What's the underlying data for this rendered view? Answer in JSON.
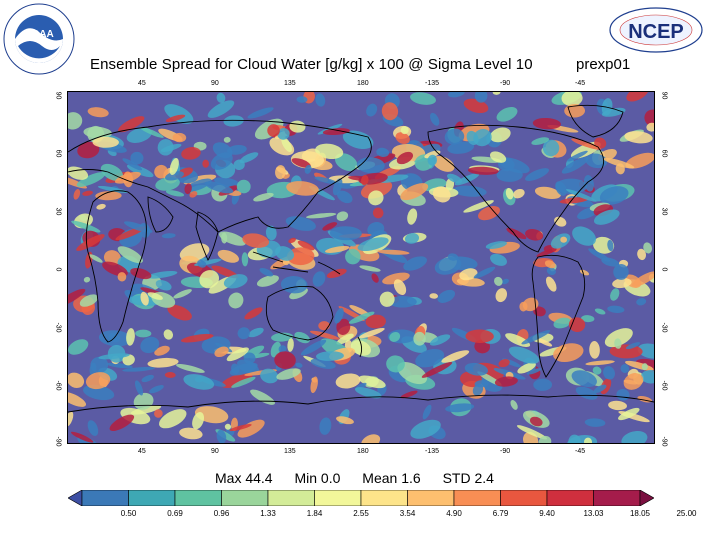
{
  "header": {
    "title": "Ensemble Spread for Cloud Water [g/kg] x 100 @ Sigma Level 10",
    "run_id": "prexp01",
    "noaa_logo_text": "NOAA",
    "noaa_ring_text": "NATIONAL OCEANIC AND ATMOSPHERIC ADMINISTRATION",
    "ncep_logo_text": "NCEP",
    "ncep_ring_text": "NATIONAL CENTERS FOR ENVIRONMENTAL PREDICTION"
  },
  "map": {
    "lon_ticks_top": [
      "45",
      "90",
      "135",
      "180",
      "-135",
      "-90",
      "-45"
    ],
    "lon_ticks_bottom": [
      "45",
      "90",
      "135",
      "180",
      "-135",
      "-90",
      "-45"
    ],
    "lat_ticks_left": [
      "90",
      "60",
      "30",
      "0",
      "-30",
      "-60",
      "-90"
    ],
    "lat_ticks_right": [
      "90",
      "60",
      "30",
      "0",
      "-30",
      "-60",
      "-90"
    ],
    "background_color": "#5b5ba4",
    "palette": [
      "#4a4aa0",
      "#3b7fc0",
      "#44a8c8",
      "#5cc3b0",
      "#a5dca6",
      "#e6f59a",
      "#fee390",
      "#fdbf6f",
      "#f89e5a",
      "#ee6545",
      "#d73a3a",
      "#b51f3f"
    ]
  },
  "stats": {
    "max": "Max 44.4",
    "min": "Min 0.0",
    "mean": "Mean 1.6",
    "std": "STD 2.4"
  },
  "colorbar": {
    "labels": [
      "0.50",
      "0.69",
      "0.96",
      "1.33",
      "1.84",
      "2.55",
      "3.54",
      "4.90",
      "6.79",
      "9.40",
      "13.03",
      "18.05",
      "25.00"
    ],
    "colors": [
      "#3d4fa3",
      "#3b79b7",
      "#3ea8b4",
      "#5fc3a1",
      "#9ad59b",
      "#d3ec98",
      "#f2f79a",
      "#fde48a",
      "#fdbf6f",
      "#f88e54",
      "#e9573f",
      "#cf2f3e",
      "#a51c4b",
      "#7a1040"
    ]
  }
}
